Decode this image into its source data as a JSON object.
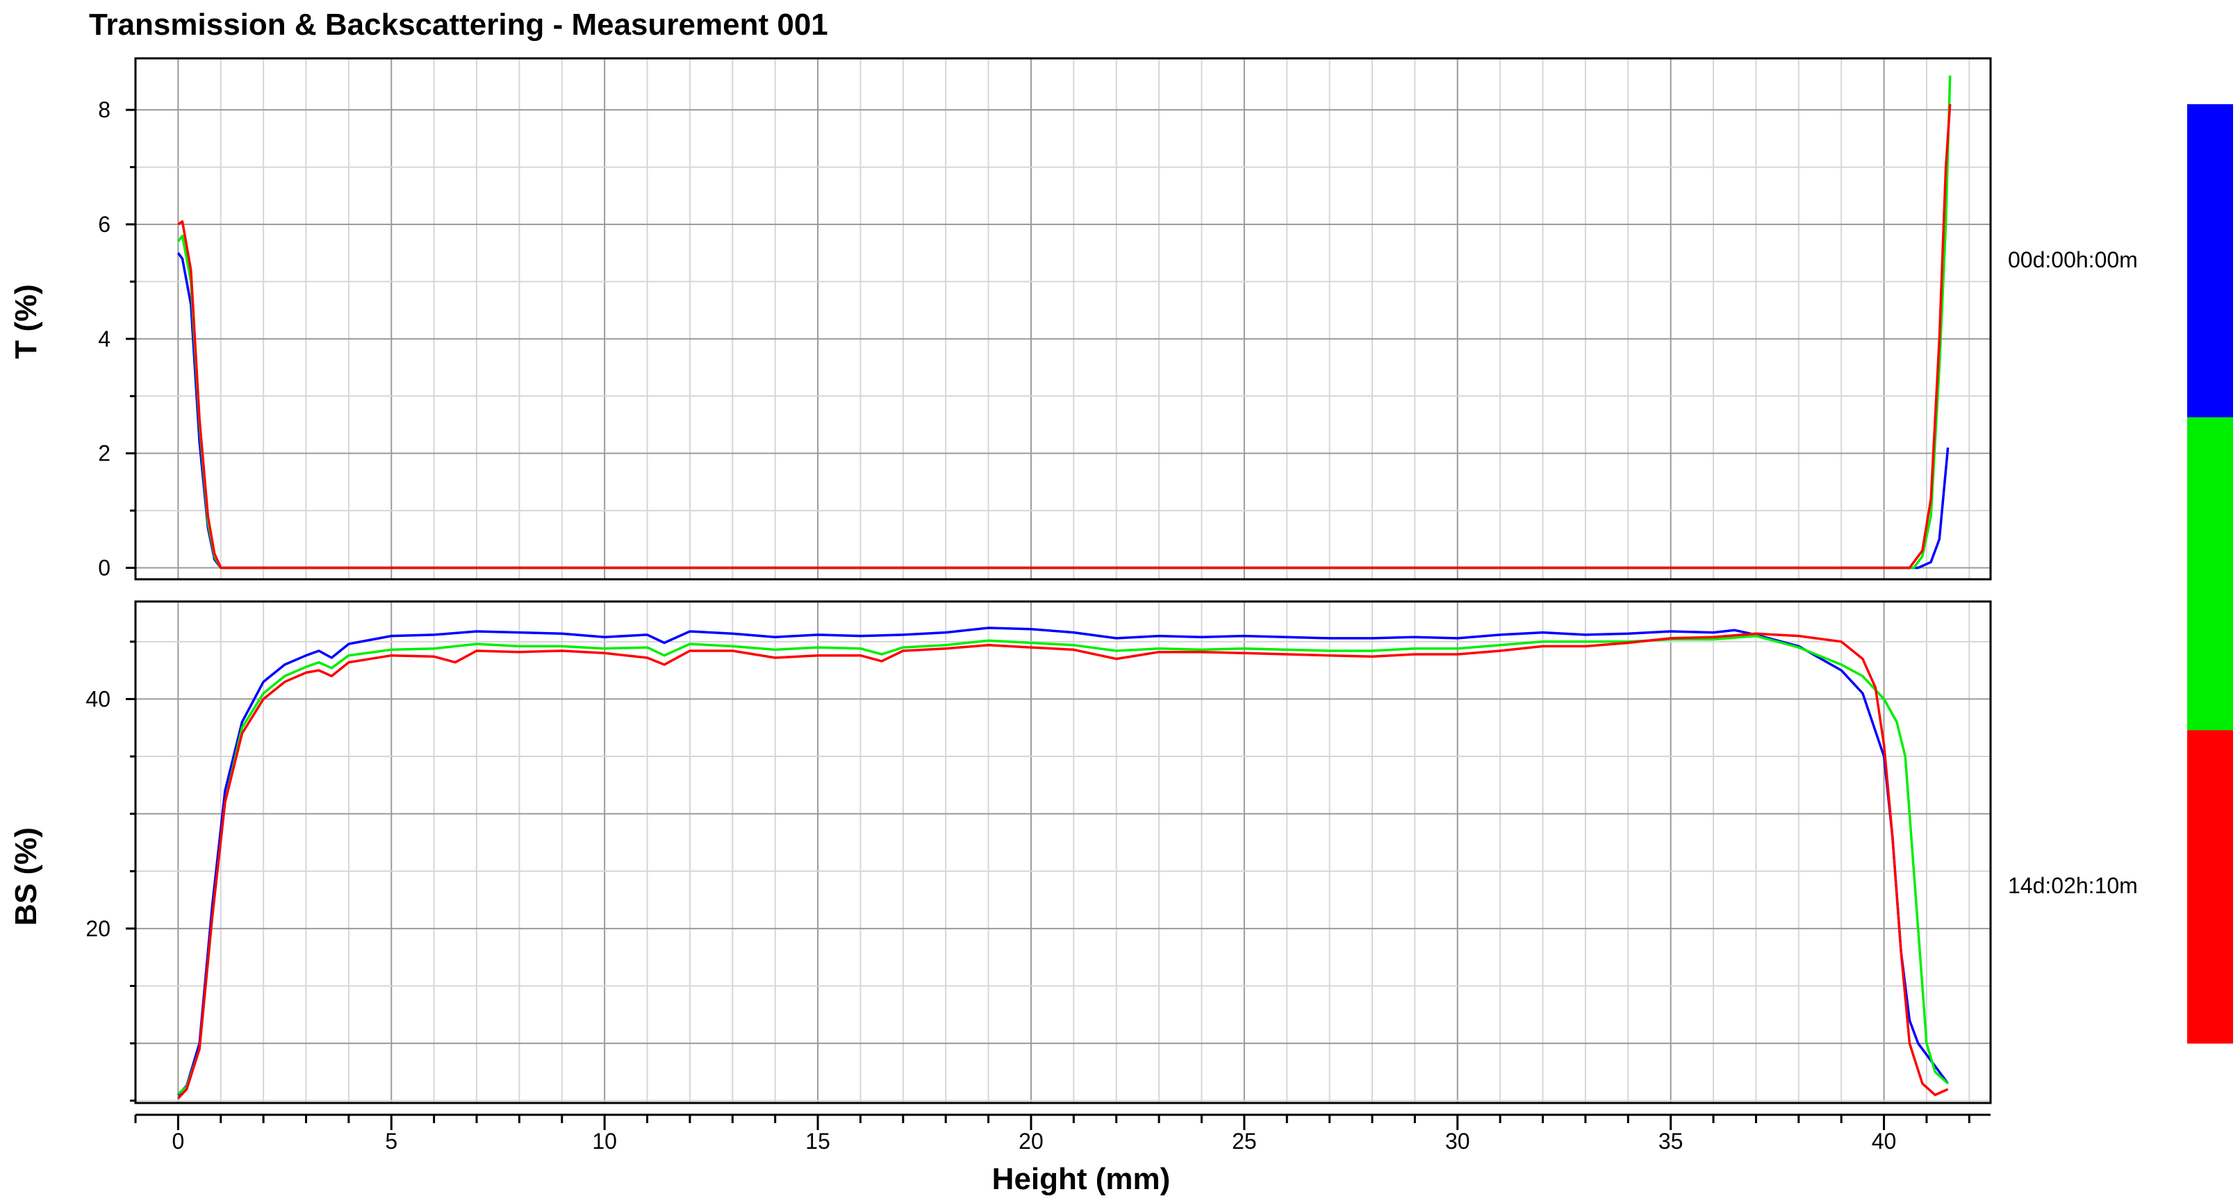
{
  "chart_data": {
    "type": "line",
    "title": "Transmission & Backscattering - Measurement 001",
    "xlabel": "Height (mm)",
    "x_ticks": [
      0,
      5,
      10,
      15,
      20,
      25,
      30,
      35,
      40
    ],
    "xlim": [
      -1,
      42.5
    ],
    "grid": true,
    "legend": {
      "placement": "right",
      "type": "colorbar",
      "colors": [
        "#0000ff",
        "#00ee00",
        "#ff0000"
      ],
      "labels": [
        "00d:00h:00m",
        "14d:02h:10m"
      ]
    },
    "panels": [
      {
        "name": "transmission",
        "ylabel": "T (%)",
        "ylim": [
          -0.2,
          8.9
        ],
        "y_ticks": [
          0,
          2,
          4,
          6,
          8
        ],
        "series": [
          {
            "color": "#0000ff",
            "points": [
              [
                0,
                5.5
              ],
              [
                0.1,
                5.4
              ],
              [
                0.3,
                4.6
              ],
              [
                0.5,
                2.2
              ],
              [
                0.7,
                0.7
              ],
              [
                0.85,
                0.15
              ],
              [
                1.0,
                0
              ],
              [
                40.8,
                0
              ],
              [
                41.1,
                0.1
              ],
              [
                41.3,
                0.5
              ],
              [
                41.5,
                2.1
              ]
            ]
          },
          {
            "color": "#00ee00",
            "points": [
              [
                0,
                5.7
              ],
              [
                0.1,
                5.8
              ],
              [
                0.3,
                5.0
              ],
              [
                0.5,
                2.5
              ],
              [
                0.7,
                0.8
              ],
              [
                0.85,
                0.2
              ],
              [
                1.0,
                0
              ],
              [
                40.7,
                0
              ],
              [
                40.9,
                0.2
              ],
              [
                41.1,
                0.9
              ],
              [
                41.3,
                3.5
              ],
              [
                41.45,
                6.0
              ],
              [
                41.55,
                8.6
              ]
            ]
          },
          {
            "color": "#ff0000",
            "points": [
              [
                0,
                6.0
              ],
              [
                0.1,
                6.05
              ],
              [
                0.3,
                5.2
              ],
              [
                0.5,
                2.6
              ],
              [
                0.7,
                0.9
              ],
              [
                0.85,
                0.25
              ],
              [
                1.0,
                0
              ],
              [
                40.6,
                0
              ],
              [
                40.9,
                0.3
              ],
              [
                41.1,
                1.2
              ],
              [
                41.3,
                4.0
              ],
              [
                41.45,
                7.0
              ],
              [
                41.55,
                8.1
              ]
            ]
          }
        ]
      },
      {
        "name": "backscattering",
        "ylabel": "BS (%)",
        "ylim": [
          4.8,
          48.5
        ],
        "y_ticks": [
          20,
          40
        ],
        "series": [
          {
            "color": "#0000ff",
            "points": [
              [
                0,
                5.5
              ],
              [
                0.2,
                6.3
              ],
              [
                0.5,
                10
              ],
              [
                0.8,
                22
              ],
              [
                1.1,
                32
              ],
              [
                1.5,
                38
              ],
              [
                2,
                41.5
              ],
              [
                2.5,
                43
              ],
              [
                3,
                43.8
              ],
              [
                3.3,
                44.2
              ],
              [
                3.6,
                43.6
              ],
              [
                4,
                44.8
              ],
              [
                5,
                45.5
              ],
              [
                6,
                45.6
              ],
              [
                7,
                45.9
              ],
              [
                8,
                45.8
              ],
              [
                9,
                45.7
              ],
              [
                10,
                45.4
              ],
              [
                11,
                45.6
              ],
              [
                11.4,
                44.9
              ],
              [
                12,
                45.9
              ],
              [
                13,
                45.7
              ],
              [
                14,
                45.4
              ],
              [
                15,
                45.6
              ],
              [
                16,
                45.5
              ],
              [
                17,
                45.6
              ],
              [
                18,
                45.8
              ],
              [
                19,
                46.2
              ],
              [
                20,
                46.1
              ],
              [
                21,
                45.8
              ],
              [
                22,
                45.3
              ],
              [
                23,
                45.5
              ],
              [
                24,
                45.4
              ],
              [
                25,
                45.5
              ],
              [
                26,
                45.4
              ],
              [
                27,
                45.3
              ],
              [
                28,
                45.3
              ],
              [
                29,
                45.4
              ],
              [
                30,
                45.3
              ],
              [
                31,
                45.6
              ],
              [
                32,
                45.8
              ],
              [
                33,
                45.6
              ],
              [
                34,
                45.7
              ],
              [
                35,
                45.9
              ],
              [
                36,
                45.8
              ],
              [
                36.5,
                46
              ],
              [
                37,
                45.6
              ],
              [
                38,
                44.6
              ],
              [
                39,
                42.5
              ],
              [
                39.5,
                40.5
              ],
              [
                40,
                35
              ],
              [
                40.2,
                28
              ],
              [
                40.4,
                18
              ],
              [
                40.6,
                12
              ],
              [
                40.8,
                10
              ],
              [
                41,
                9
              ],
              [
                41.2,
                8
              ],
              [
                41.5,
                6.5
              ]
            ]
          },
          {
            "color": "#00ee00",
            "points": [
              [
                0,
                5.6
              ],
              [
                0.2,
                6.2
              ],
              [
                0.5,
                9.5
              ],
              [
                0.8,
                21
              ],
              [
                1.1,
                31
              ],
              [
                1.5,
                37.5
              ],
              [
                2,
                40.5
              ],
              [
                2.5,
                42
              ],
              [
                3,
                42.8
              ],
              [
                3.3,
                43.2
              ],
              [
                3.6,
                42.7
              ],
              [
                4,
                43.8
              ],
              [
                5,
                44.3
              ],
              [
                6,
                44.4
              ],
              [
                7,
                44.8
              ],
              [
                8,
                44.6
              ],
              [
                9,
                44.6
              ],
              [
                10,
                44.4
              ],
              [
                11,
                44.5
              ],
              [
                11.4,
                43.8
              ],
              [
                12,
                44.8
              ],
              [
                13,
                44.6
              ],
              [
                14,
                44.3
              ],
              [
                15,
                44.5
              ],
              [
                16,
                44.4
              ],
              [
                16.5,
                43.9
              ],
              [
                17,
                44.5
              ],
              [
                18,
                44.7
              ],
              [
                19,
                45.1
              ],
              [
                20,
                44.9
              ],
              [
                21,
                44.7
              ],
              [
                22,
                44.2
              ],
              [
                23,
                44.4
              ],
              [
                24,
                44.3
              ],
              [
                25,
                44.4
              ],
              [
                26,
                44.3
              ],
              [
                27,
                44.2
              ],
              [
                28,
                44.2
              ],
              [
                29,
                44.4
              ],
              [
                30,
                44.4
              ],
              [
                31,
                44.7
              ],
              [
                32,
                45
              ],
              [
                33,
                45
              ],
              [
                34,
                45
              ],
              [
                35,
                45.2
              ],
              [
                36,
                45.2
              ],
              [
                37,
                45.5
              ],
              [
                38,
                44.5
              ],
              [
                39,
                43
              ],
              [
                39.5,
                42
              ],
              [
                40,
                40
              ],
              [
                40.3,
                38
              ],
              [
                40.5,
                35
              ],
              [
                40.6,
                30
              ],
              [
                40.8,
                20
              ],
              [
                41,
                10
              ],
              [
                41.2,
                7.5
              ],
              [
                41.5,
                6.5
              ]
            ]
          },
          {
            "color": "#ff0000",
            "points": [
              [
                0,
                5.2
              ],
              [
                0.2,
                6
              ],
              [
                0.5,
                9.5
              ],
              [
                0.8,
                21
              ],
              [
                1.1,
                31
              ],
              [
                1.5,
                37
              ],
              [
                2,
                40
              ],
              [
                2.5,
                41.5
              ],
              [
                3,
                42.3
              ],
              [
                3.3,
                42.5
              ],
              [
                3.6,
                42
              ],
              [
                4,
                43.2
              ],
              [
                5,
                43.8
              ],
              [
                6,
                43.7
              ],
              [
                6.5,
                43.2
              ],
              [
                7,
                44.2
              ],
              [
                8,
                44.1
              ],
              [
                9,
                44.2
              ],
              [
                10,
                44
              ],
              [
                11,
                43.6
              ],
              [
                11.4,
                43
              ],
              [
                12,
                44.2
              ],
              [
                13,
                44.2
              ],
              [
                14,
                43.6
              ],
              [
                15,
                43.8
              ],
              [
                16,
                43.8
              ],
              [
                16.5,
                43.3
              ],
              [
                17,
                44.2
              ],
              [
                18,
                44.4
              ],
              [
                19,
                44.7
              ],
              [
                20,
                44.5
              ],
              [
                21,
                44.3
              ],
              [
                22,
                43.5
              ],
              [
                23,
                44.1
              ],
              [
                24,
                44.1
              ],
              [
                25,
                44
              ],
              [
                26,
                43.9
              ],
              [
                27,
                43.8
              ],
              [
                28,
                43.7
              ],
              [
                29,
                43.9
              ],
              [
                30,
                43.9
              ],
              [
                31,
                44.2
              ],
              [
                32,
                44.6
              ],
              [
                33,
                44.6
              ],
              [
                34,
                44.9
              ],
              [
                35,
                45.3
              ],
              [
                36,
                45.4
              ],
              [
                37,
                45.7
              ],
              [
                38,
                45.5
              ],
              [
                39,
                45
              ],
              [
                39.5,
                43.5
              ],
              [
                39.8,
                41
              ],
              [
                40,
                36
              ],
              [
                40.2,
                28
              ],
              [
                40.4,
                18
              ],
              [
                40.6,
                10
              ],
              [
                40.9,
                6.5
              ],
              [
                41.2,
                5.5
              ],
              [
                41.5,
                6
              ]
            ]
          }
        ]
      }
    ]
  }
}
